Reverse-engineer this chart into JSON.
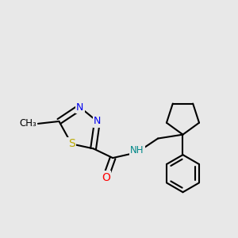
{
  "background_color": "#e8e8e8",
  "bond_color": "#000000",
  "bond_width": 1.5,
  "colors": {
    "N": "#0000ee",
    "S": "#bbaa00",
    "O": "#ff0000",
    "NH": "#008888",
    "C": "#000000"
  },
  "figsize": [
    3.0,
    3.0
  ],
  "dpi": 100,
  "xlim": [
    0,
    300
  ],
  "ylim": [
    0,
    300
  ]
}
